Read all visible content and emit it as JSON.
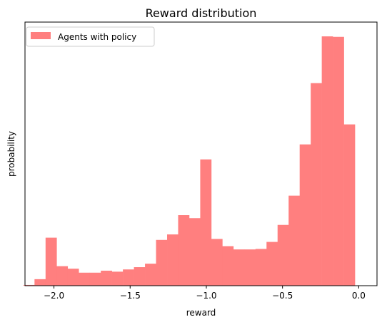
{
  "chart_data": {
    "type": "bar",
    "title": "Reward distribution",
    "xlabel": "reward",
    "ylabel": "probability",
    "legend": {
      "position": "top-left",
      "entries": [
        "Agents with policy"
      ]
    },
    "xlim": [
      -2.19,
      0.12
    ],
    "ylim": [
      0,
      1.0
    ],
    "yticks_shown": false,
    "grid": false,
    "bar_color": "#ff7f7f",
    "xticks": [
      {
        "value": -2.0,
        "label": "−2.0"
      },
      {
        "value": -1.5,
        "label": "−1.5"
      },
      {
        "value": -1.0,
        "label": "−1.0"
      },
      {
        "value": -0.5,
        "label": "−0.5"
      },
      {
        "value": 0.0,
        "label": "0.0"
      }
    ],
    "series": [
      {
        "name": "Agents with policy",
        "bin_width": 0.0725,
        "bins": [
          {
            "x0": -2.2,
            "value": 0.003
          },
          {
            "x0": -2.1275,
            "value": 0.026
          },
          {
            "x0": -2.055,
            "value": 0.192
          },
          {
            "x0": -1.9825,
            "value": 0.078
          },
          {
            "x0": -1.91,
            "value": 0.068
          },
          {
            "x0": -1.8375,
            "value": 0.052
          },
          {
            "x0": -1.765,
            "value": 0.052
          },
          {
            "x0": -1.6925,
            "value": 0.06
          },
          {
            "x0": -1.62,
            "value": 0.056
          },
          {
            "x0": -1.5475,
            "value": 0.065
          },
          {
            "x0": -1.475,
            "value": 0.074
          },
          {
            "x0": -1.4025,
            "value": 0.088
          },
          {
            "x0": -1.33,
            "value": 0.183
          },
          {
            "x0": -1.2575,
            "value": 0.205
          },
          {
            "x0": -1.185,
            "value": 0.282
          },
          {
            "x0": -1.1125,
            "value": 0.27
          },
          {
            "x0": -1.04,
            "value": 0.505
          },
          {
            "x0": -0.9675,
            "value": 0.187
          },
          {
            "x0": -0.895,
            "value": 0.158
          },
          {
            "x0": -0.8225,
            "value": 0.145
          },
          {
            "x0": -0.75,
            "value": 0.145
          },
          {
            "x0": -0.6775,
            "value": 0.147
          },
          {
            "x0": -0.605,
            "value": 0.175
          },
          {
            "x0": -0.5325,
            "value": 0.243
          },
          {
            "x0": -0.46,
            "value": 0.36
          },
          {
            "x0": -0.3875,
            "value": 0.565
          },
          {
            "x0": -0.315,
            "value": 0.81
          },
          {
            "x0": -0.2425,
            "value": 0.997
          },
          {
            "x0": -0.17,
            "value": 0.995
          },
          {
            "x0": -0.0975,
            "value": 0.645
          }
        ]
      }
    ]
  }
}
